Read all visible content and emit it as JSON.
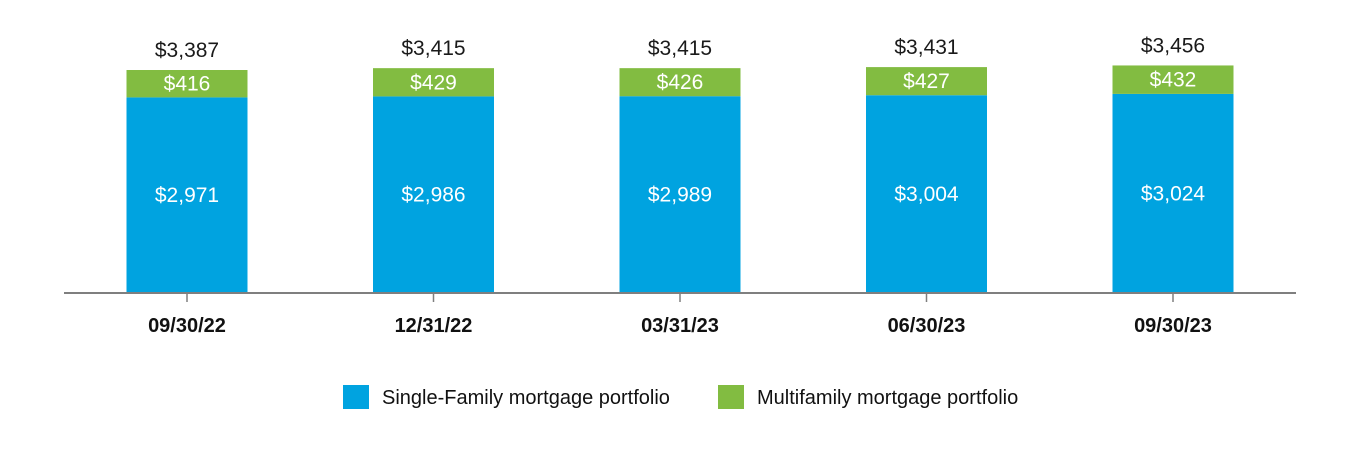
{
  "chart_data": {
    "type": "bar",
    "stacked": true,
    "categories": [
      "09/30/22",
      "12/31/22",
      "03/31/23",
      "06/30/23",
      "09/30/23"
    ],
    "series": [
      {
        "name": "Single-Family mortgage portfolio",
        "color": "#00a3e0",
        "values": [
          2971,
          2986,
          2989,
          3004,
          3024
        ],
        "labels": [
          "$2,971",
          "$2,986",
          "$2,989",
          "$3,004",
          "$3,024"
        ]
      },
      {
        "name": "Multifamily mortgage portfolio",
        "color": "#82bc41",
        "values": [
          416,
          429,
          426,
          427,
          432
        ],
        "labels": [
          "$416",
          "$429",
          "$426",
          "$427",
          "$432"
        ]
      }
    ],
    "totals": [
      3387,
      3415,
      3415,
      3431,
      3456
    ],
    "total_labels": [
      "$3,387",
      "$3,415",
      "$3,415",
      "$3,431",
      "$3,456"
    ],
    "legend_position": "bottom-center",
    "grid": false
  }
}
